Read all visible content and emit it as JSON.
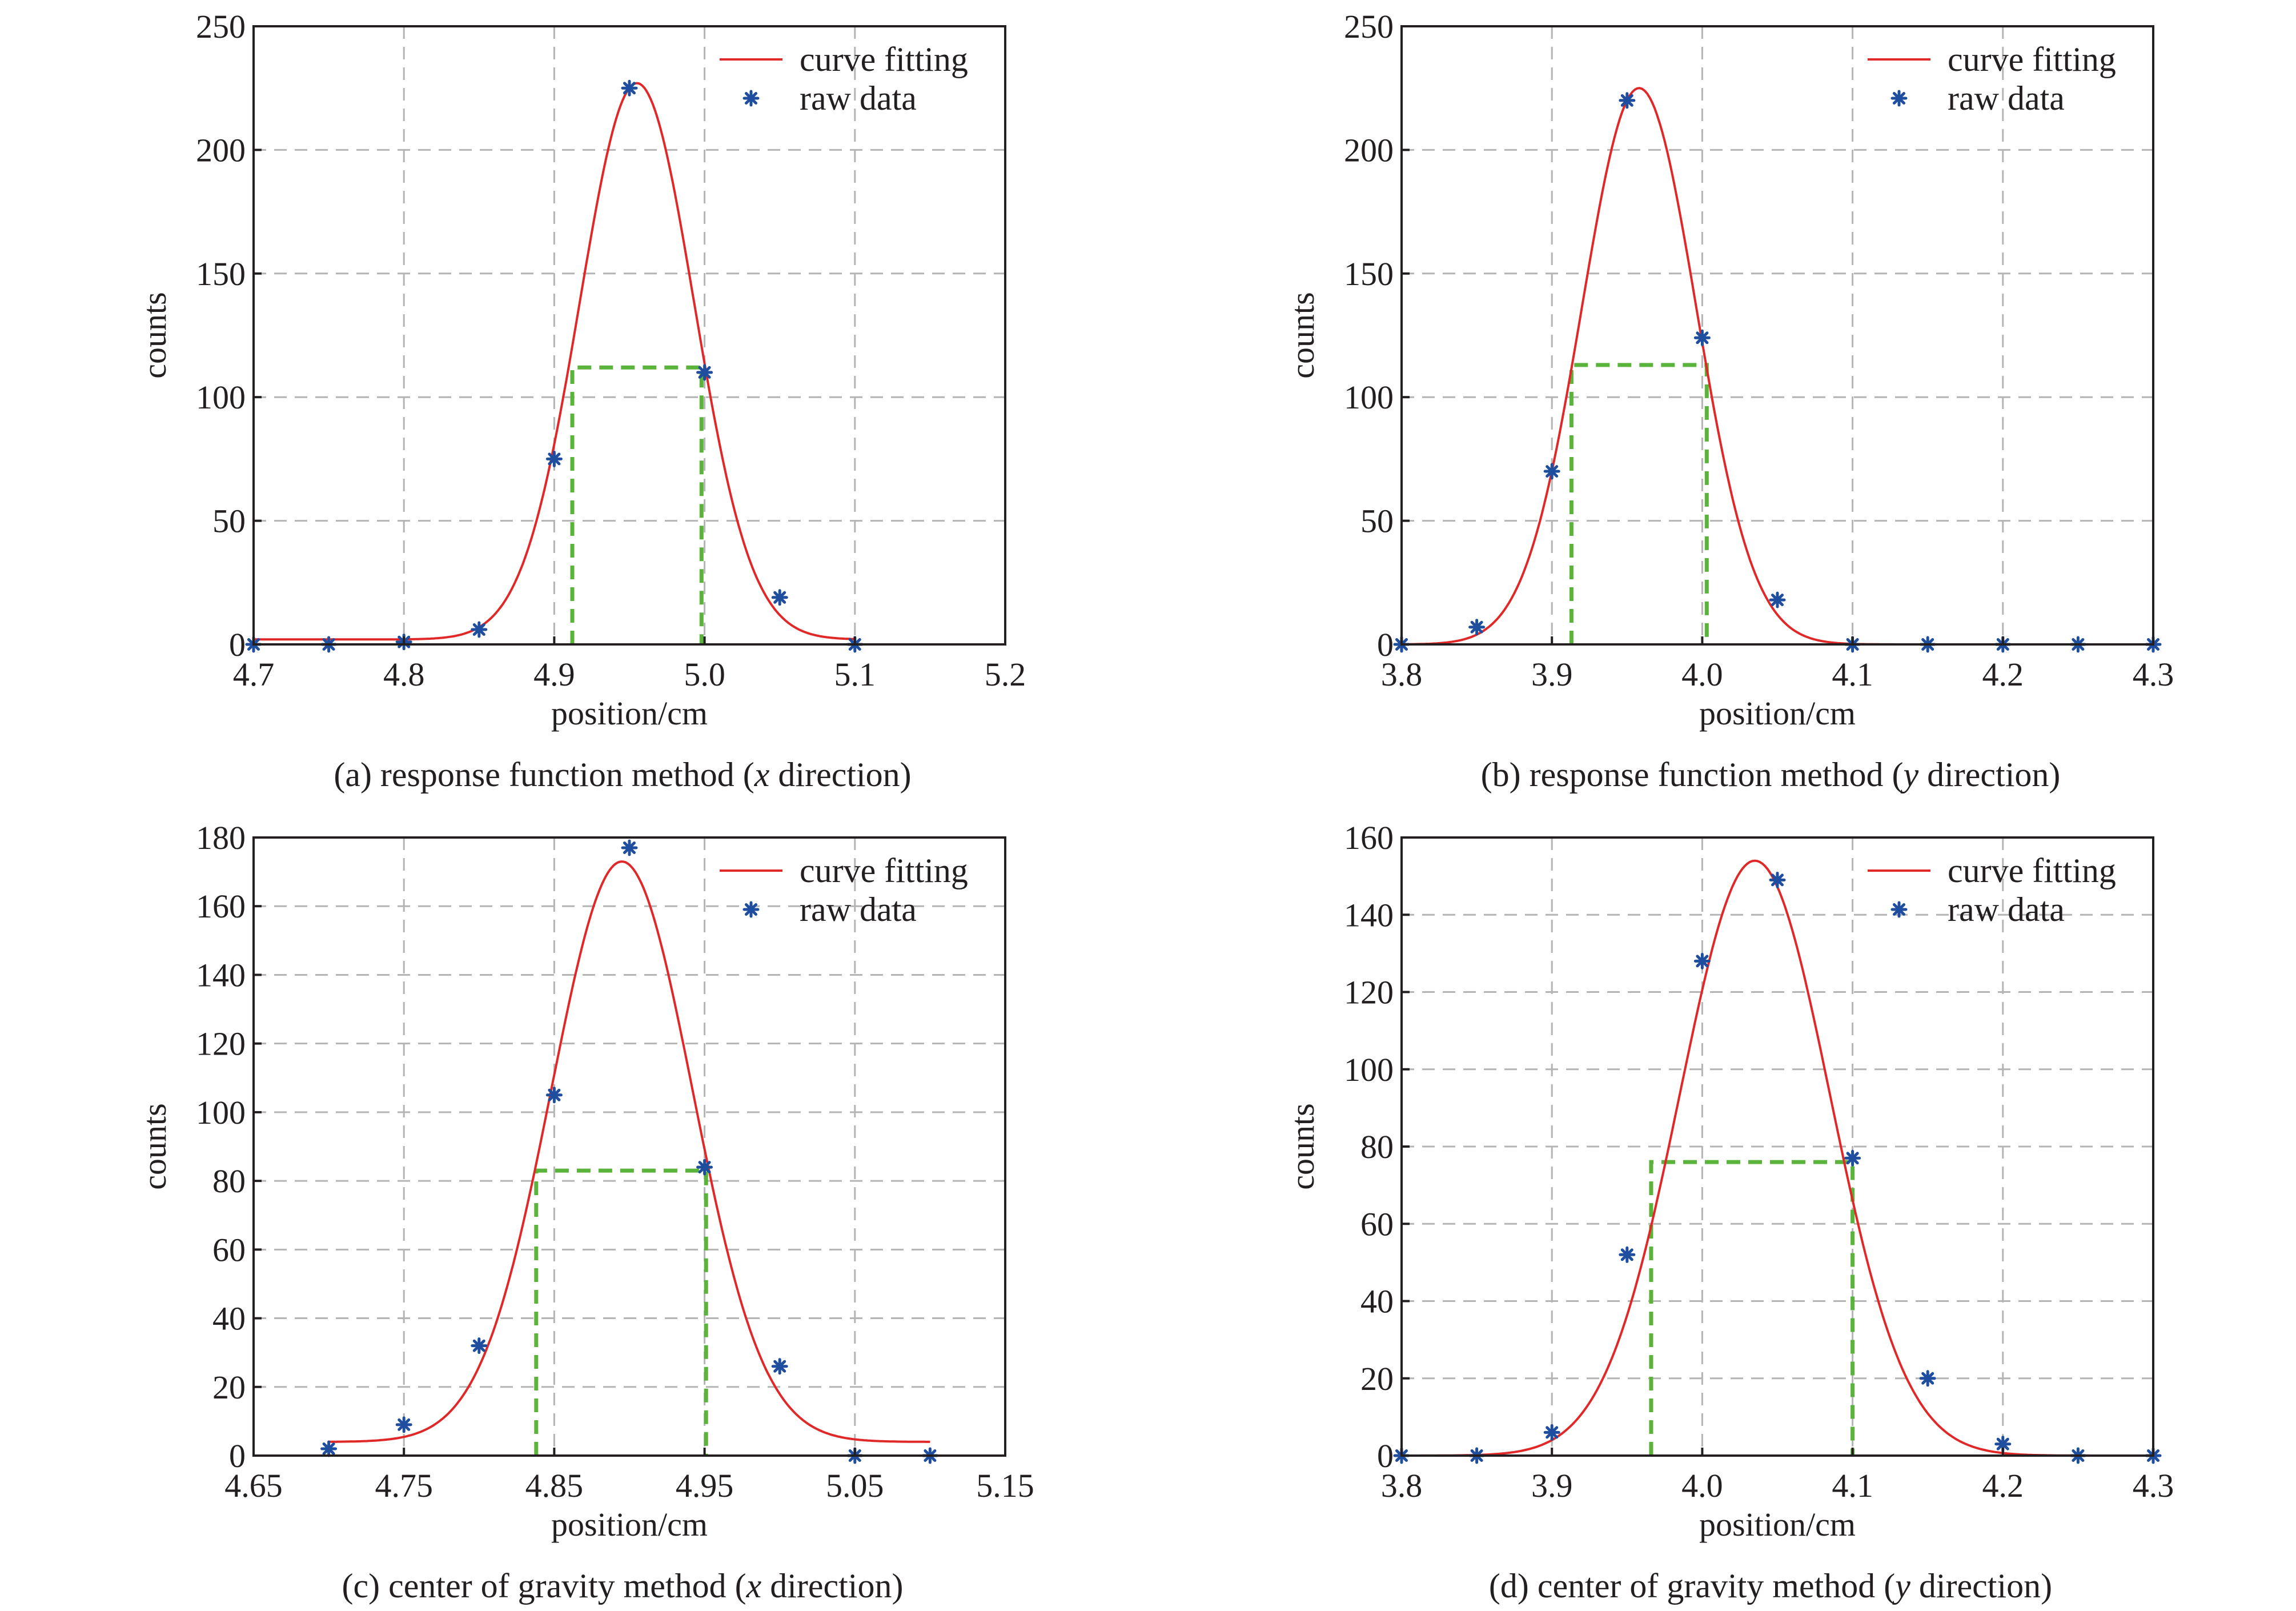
{
  "colors": {
    "fit": "#e02828",
    "raw": "#1f4e9e",
    "fwhm": "#5ab43c",
    "grid": "#b4b4b4",
    "axis": "#231f20",
    "text": "#231f20"
  },
  "legend": {
    "fit_label": "curve fitting",
    "raw_label": "raw data"
  },
  "chart_data": [
    {
      "id": "a",
      "type": "line",
      "caption": {
        "prefix": "(a) response function method (",
        "var": "x",
        "suffix": " direction)"
      },
      "xlabel": "position/cm",
      "ylabel": "counts",
      "xlim": [
        4.7,
        5.2
      ],
      "ylim": [
        0,
        250
      ],
      "xticks": [
        "4.7",
        "4.8",
        "4.9",
        "5.0",
        "5.1",
        "5.2"
      ],
      "yticks": [
        "0",
        "50",
        "100",
        "150",
        "200",
        "250"
      ],
      "grid": true,
      "legend_position": "top-right",
      "series": [
        {
          "name": "raw data",
          "kind": "scatter",
          "x": [
            4.7,
            4.75,
            4.8,
            4.85,
            4.9,
            4.95,
            5.0,
            5.05,
            5.1
          ],
          "y": [
            0,
            0,
            1,
            6,
            75,
            225,
            110,
            19,
            0
          ]
        },
        {
          "name": "curve fitting",
          "kind": "line",
          "model": "gaussian",
          "amplitude": 225,
          "center": 4.955,
          "sigma": 0.038,
          "offset": 2,
          "x_range": [
            4.7,
            5.1
          ]
        }
      ],
      "fwhm_marker": {
        "x_left": 4.912,
        "x_right": 4.998,
        "y": 112
      }
    },
    {
      "id": "b",
      "type": "line",
      "caption": {
        "prefix": "(b) response function method (",
        "var": "y",
        "suffix": " direction)"
      },
      "xlabel": "position/cm",
      "ylabel": "counts",
      "xlim": [
        3.8,
        4.3
      ],
      "ylim": [
        0,
        250
      ],
      "xticks": [
        "3.8",
        "3.9",
        "4.0",
        "4.1",
        "4.2",
        "4.3"
      ],
      "yticks": [
        "0",
        "50",
        "100",
        "150",
        "200",
        "250"
      ],
      "grid": true,
      "legend_position": "top-right",
      "series": [
        {
          "name": "raw data",
          "kind": "scatter",
          "x": [
            3.8,
            3.85,
            3.9,
            3.95,
            4.0,
            4.05,
            4.1,
            4.15,
            4.2,
            4.25,
            4.3
          ],
          "y": [
            0,
            7,
            70,
            220,
            124,
            18,
            0,
            0,
            0,
            0,
            0
          ]
        },
        {
          "name": "curve fitting",
          "kind": "line",
          "model": "gaussian",
          "amplitude": 225,
          "center": 3.958,
          "sigma": 0.038,
          "offset": 0,
          "x_range": [
            3.8,
            4.3
          ]
        }
      ],
      "fwhm_marker": {
        "x_left": 3.913,
        "x_right": 4.003,
        "y": 113
      }
    },
    {
      "id": "c",
      "type": "line",
      "caption": {
        "prefix": "(c) center of gravity method (",
        "var": "x",
        "suffix": " direction)"
      },
      "xlabel": "position/cm",
      "ylabel": "counts",
      "xlim": [
        4.65,
        5.15
      ],
      "ylim": [
        0,
        180
      ],
      "xticks": [
        "4.65",
        "4.75",
        "4.85",
        "4.95",
        "5.05",
        "5.15"
      ],
      "yticks": [
        "0",
        "20",
        "40",
        "60",
        "80",
        "100",
        "120",
        "140",
        "160",
        "180"
      ],
      "grid": true,
      "legend_position": "top-right",
      "series": [
        {
          "name": "raw data",
          "kind": "scatter",
          "x": [
            4.7,
            4.75,
            4.8,
            4.85,
            4.9,
            4.95,
            5.0,
            5.05,
            5.1
          ],
          "y": [
            2,
            9,
            32,
            105,
            177,
            84,
            26,
            0,
            0
          ]
        },
        {
          "name": "curve fitting",
          "kind": "line",
          "model": "gaussian",
          "amplitude": 169,
          "center": 4.895,
          "sigma": 0.047,
          "offset": 4,
          "x_range": [
            4.7,
            5.1
          ]
        }
      ],
      "fwhm_marker": {
        "x_left": 4.838,
        "x_right": 4.951,
        "y": 83
      }
    },
    {
      "id": "d",
      "type": "line",
      "caption": {
        "prefix": "(d) center of gravity method (",
        "var": "y",
        "suffix": " direction)"
      },
      "xlabel": "position/cm",
      "ylabel": "counts",
      "xlim": [
        3.8,
        4.3
      ],
      "ylim": [
        0,
        160
      ],
      "xticks": [
        "3.8",
        "3.9",
        "4.0",
        "4.1",
        "4.2",
        "4.3"
      ],
      "yticks": [
        "0",
        "20",
        "40",
        "60",
        "80",
        "100",
        "120",
        "140",
        "160"
      ],
      "grid": true,
      "legend_position": "top-right",
      "series": [
        {
          "name": "raw data",
          "kind": "scatter",
          "x": [
            3.8,
            3.85,
            3.9,
            3.95,
            4.0,
            4.05,
            4.1,
            4.15,
            4.2,
            4.25,
            4.3
          ],
          "y": [
            0,
            0,
            6,
            52,
            128,
            149,
            77,
            20,
            3,
            0,
            0
          ]
        },
        {
          "name": "curve fitting",
          "kind": "line",
          "model": "gaussian",
          "amplitude": 154,
          "center": 4.035,
          "sigma": 0.05,
          "offset": 0,
          "x_range": [
            3.8,
            4.3
          ]
        }
      ],
      "fwhm_marker": {
        "x_left": 3.966,
        "x_right": 4.1,
        "y": 76
      }
    }
  ]
}
